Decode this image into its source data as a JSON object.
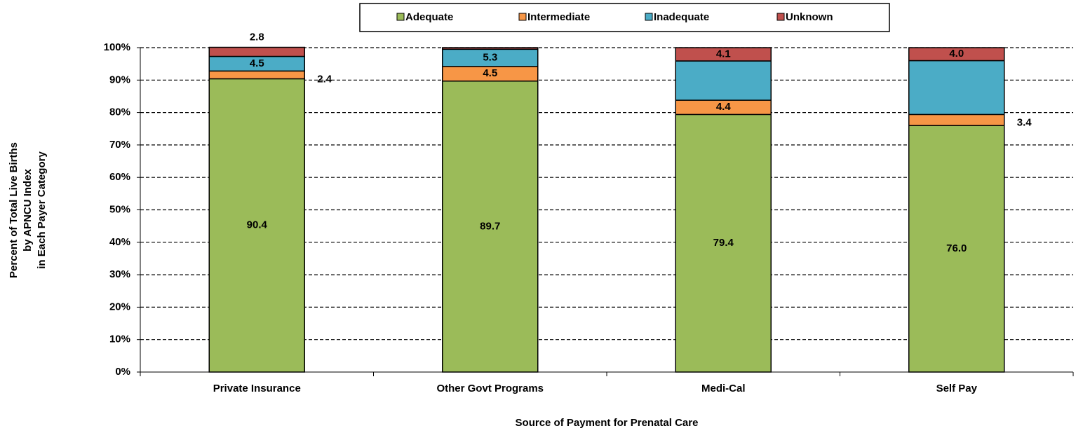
{
  "chart_data": {
    "type": "stacked_bar",
    "xlabel": "Source of Payment for Prenatal Care",
    "ylabel": [
      "Percent of Total Live Births",
      "by APNCU Index",
      "in Each Payer Category"
    ],
    "categories": [
      "Private Insurance",
      "Other Govt Programs",
      "Medi-Cal",
      "Self Pay"
    ],
    "series": [
      {
        "name": "Adequate",
        "color": "#9bbb59",
        "values": [
          90.4,
          89.7,
          79.4,
          76.0
        ],
        "value_labels": [
          "90.4",
          "89.7",
          "79.4",
          "76.0"
        ]
      },
      {
        "name": "Intermediate",
        "color": "#f79646",
        "values": [
          2.4,
          4.5,
          4.4,
          3.4
        ],
        "value_labels": [
          "2.4",
          "4.5",
          "4.4",
          "3.4"
        ]
      },
      {
        "name": "Inadequate",
        "color": "#4bacc6",
        "values": [
          4.5,
          5.3,
          12.1,
          16.6
        ],
        "value_labels": [
          "4.5",
          "5.3",
          null,
          null
        ]
      },
      {
        "name": "Unknown",
        "color": "#c0504d",
        "values": [
          2.8,
          0.5,
          4.1,
          4.0
        ],
        "value_labels": [
          "2.8",
          null,
          "4.1",
          "4.0"
        ]
      }
    ],
    "ylim": [
      0,
      100
    ],
    "yticks": [
      {
        "value": 0,
        "label": "0%"
      },
      {
        "value": 10,
        "label": "10%"
      },
      {
        "value": 20,
        "label": "20%"
      },
      {
        "value": 30,
        "label": "30%"
      },
      {
        "value": 40,
        "label": "40%"
      },
      {
        "value": 50,
        "label": "50%"
      },
      {
        "value": 60,
        "label": "60%"
      },
      {
        "value": 70,
        "label": "70%"
      },
      {
        "value": 80,
        "label": "80%"
      },
      {
        "value": 90,
        "label": "90%"
      },
      {
        "value": 100,
        "label": "100%"
      }
    ],
    "grid": true,
    "legend": "top"
  }
}
